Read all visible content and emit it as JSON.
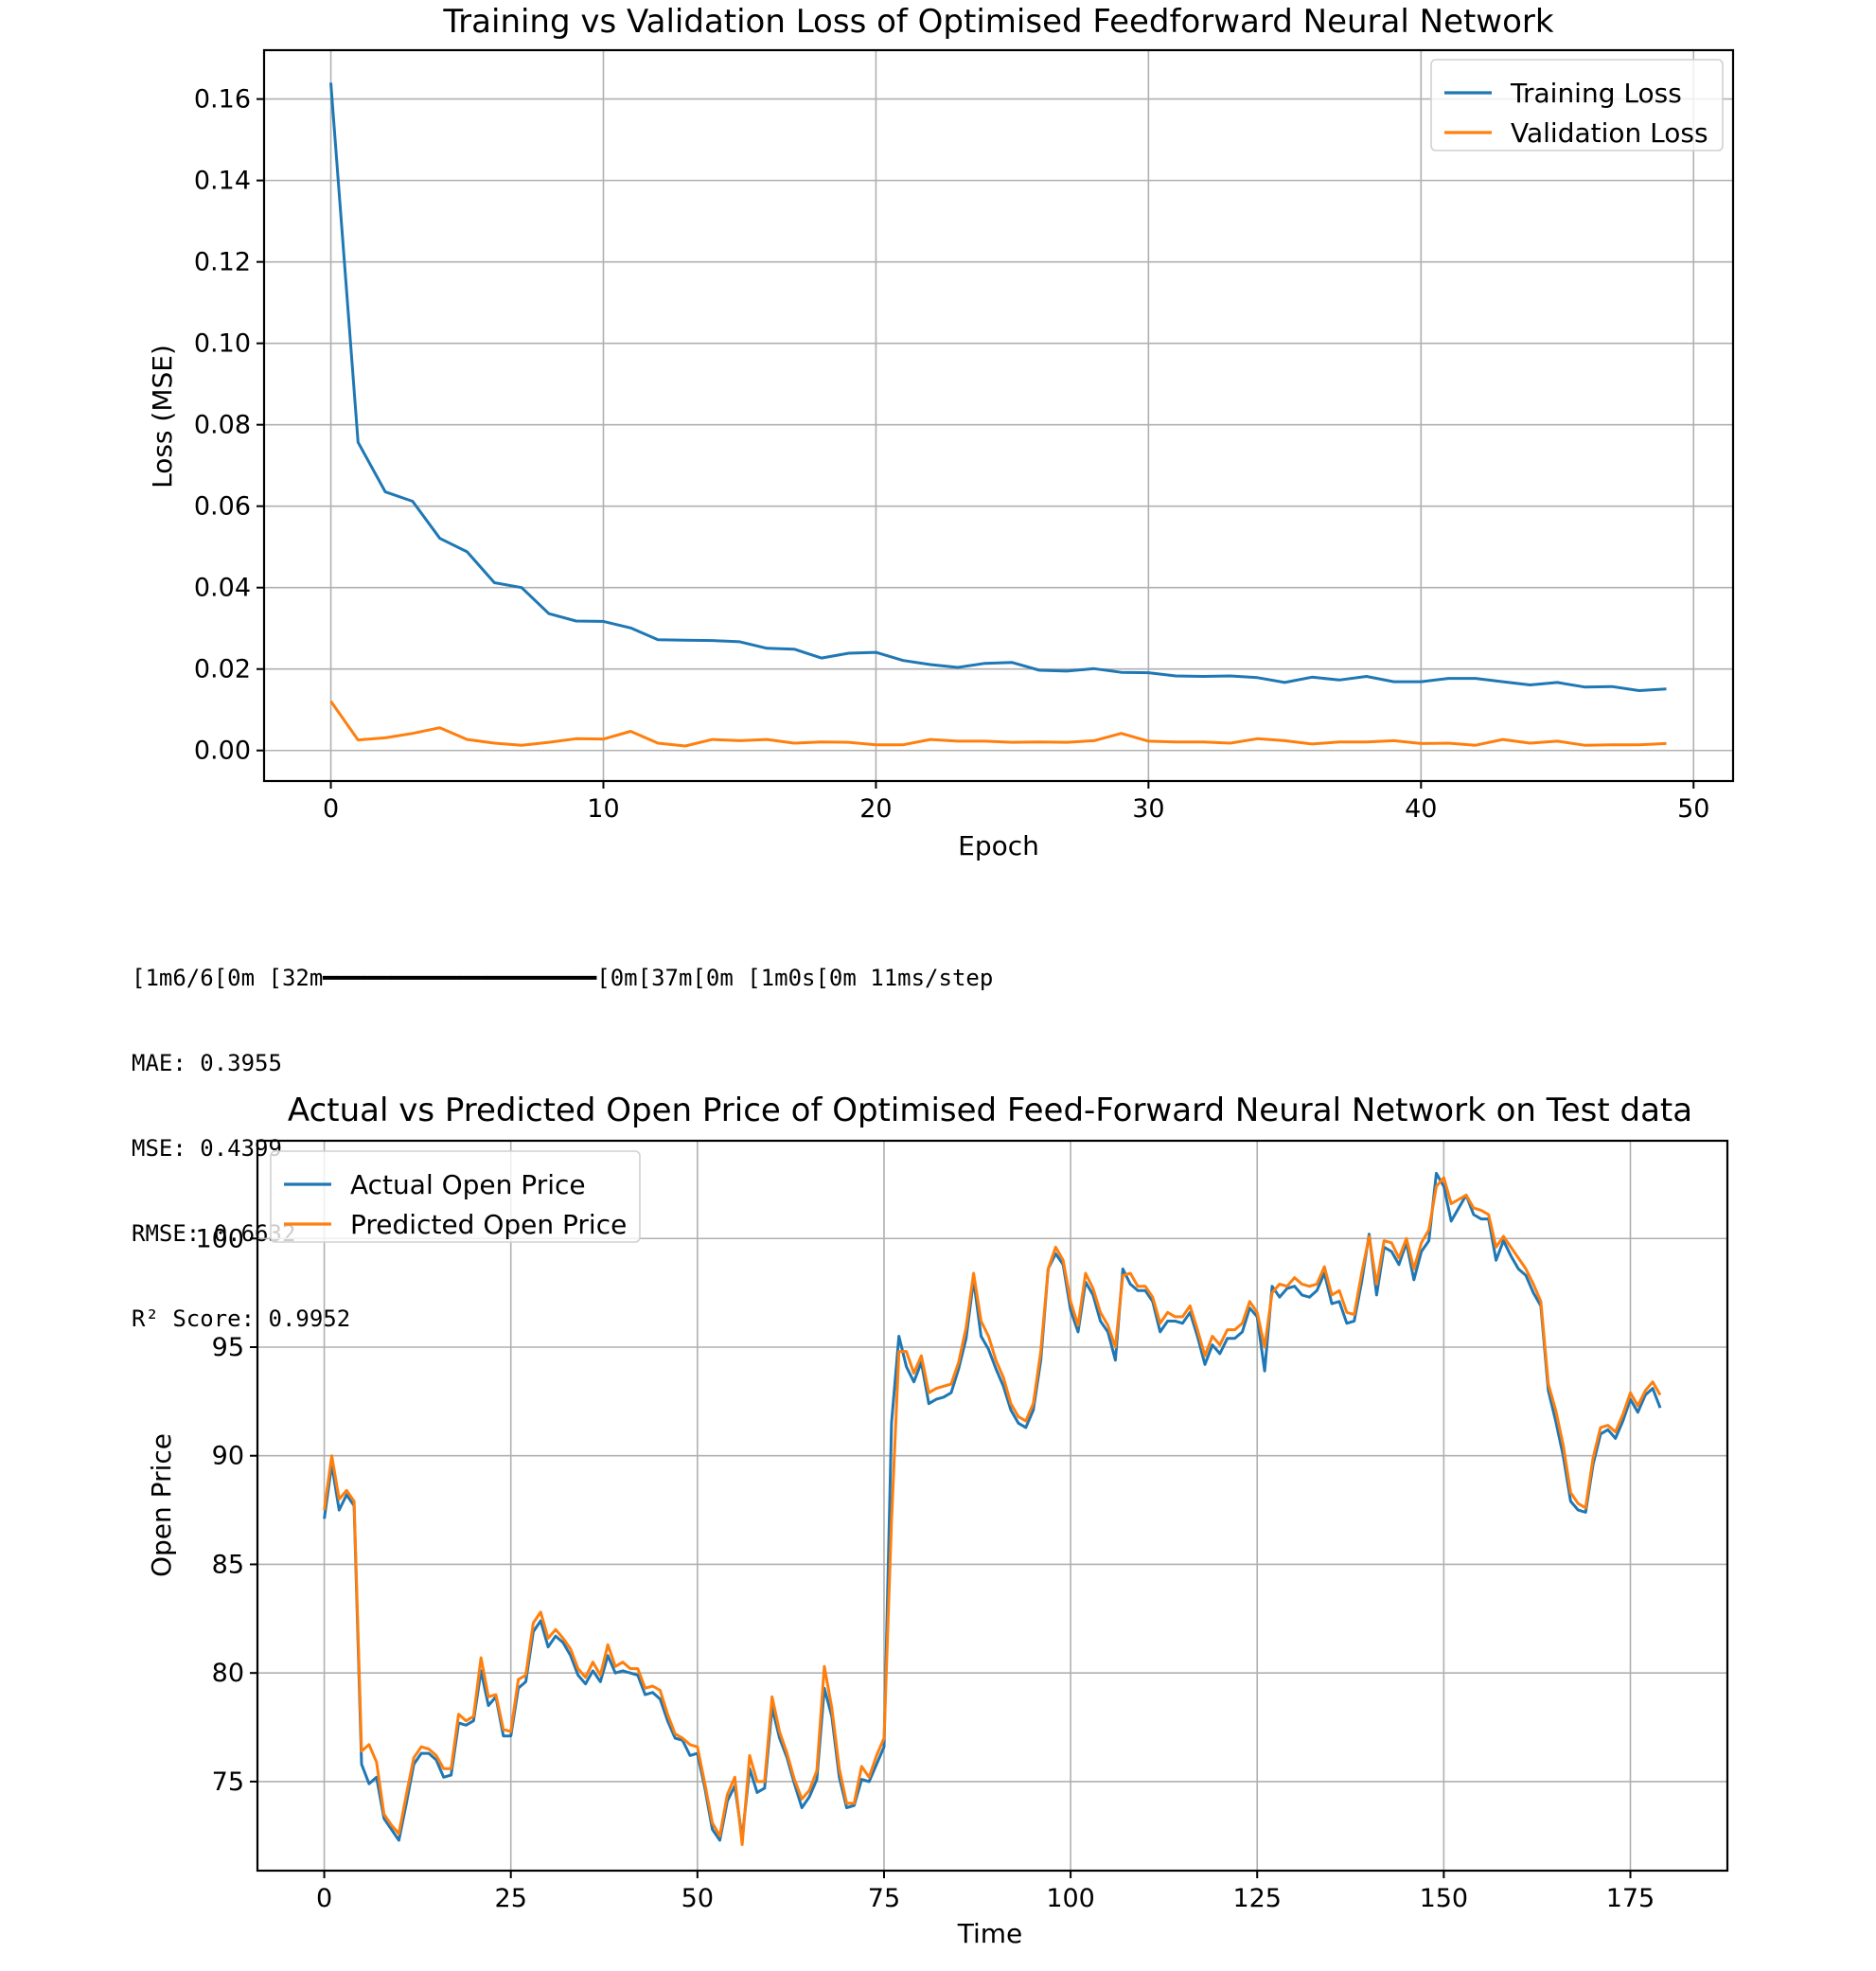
{
  "colors": {
    "training": "#1f77b4",
    "validation": "#ff7f0e",
    "actual": "#1f77b4",
    "predicted": "#ff7f0e"
  },
  "console": {
    "progress": "\u001b[1m6/6\u001b[0m \u001b[32m━━━━━━━━━━━━━━━━━━━━\u001b[0m\u001b[37m\u001b[0m \u001b[1m0s\u001b[0m 11ms/step",
    "mae": "MAE: 0.3955",
    "mse": "MSE: 0.4399",
    "rmse": "RMSE: 0.6632",
    "r2": "R² Score: 0.9952"
  },
  "chart_data": [
    {
      "type": "line",
      "title": "Training vs Validation Loss of Optimised Feedforward Neural Network",
      "xlabel": "Epoch",
      "ylabel": "Loss (MSE)",
      "xlim": [
        -2.45,
        51.45
      ],
      "ylim": [
        -0.0075,
        0.172
      ],
      "xticks": [
        0,
        10,
        20,
        30,
        40,
        50
      ],
      "yticks": [
        0.0,
        0.02,
        0.04,
        0.06,
        0.08,
        0.1,
        0.12,
        0.14,
        0.16
      ],
      "ytick_labels": [
        "0.00",
        "0.02",
        "0.04",
        "0.06",
        "0.08",
        "0.10",
        "0.12",
        "0.14",
        "0.16"
      ],
      "grid": true,
      "legend": "top-right",
      "series": [
        {
          "name": "Training Loss",
          "color": "#1f77b4",
          "values": [
            0.164,
            0.0757,
            0.0635,
            0.0612,
            0.0521,
            0.0488,
            0.0412,
            0.04,
            0.0336,
            0.0318,
            0.0317,
            0.0301,
            0.0272,
            0.0271,
            0.027,
            0.0267,
            0.0251,
            0.0249,
            0.0227,
            0.0239,
            0.0241,
            0.0221,
            0.0211,
            0.0204,
            0.0214,
            0.0216,
            0.0197,
            0.0195,
            0.0201,
            0.0192,
            0.0191,
            0.0183,
            0.0182,
            0.0183,
            0.0179,
            0.0167,
            0.018,
            0.0173,
            0.0182,
            0.0169,
            0.0169,
            0.0177,
            0.0177,
            0.0169,
            0.0161,
            0.0167,
            0.0156,
            0.0157,
            0.0147,
            0.0151
          ]
        },
        {
          "name": "Validation Loss",
          "color": "#ff7f0e",
          "values": [
            0.0121,
            0.0026,
            0.0031,
            0.0042,
            0.0056,
            0.0027,
            0.0018,
            0.0013,
            0.002,
            0.0029,
            0.0028,
            0.0047,
            0.0018,
            0.0011,
            0.0027,
            0.0024,
            0.0027,
            0.0018,
            0.0021,
            0.002,
            0.0014,
            0.0014,
            0.0027,
            0.0023,
            0.0023,
            0.002,
            0.0021,
            0.002,
            0.0024,
            0.0042,
            0.0023,
            0.0021,
            0.0021,
            0.0018,
            0.0029,
            0.0024,
            0.0016,
            0.0021,
            0.0021,
            0.0024,
            0.0017,
            0.0018,
            0.0013,
            0.0027,
            0.0018,
            0.0023,
            0.0013,
            0.0014,
            0.0014,
            0.0017
          ]
        }
      ]
    },
    {
      "type": "line",
      "title": "Actual vs Predicted Open Price of Optimised Feed-Forward Neural Network on Test data",
      "xlabel": "Time",
      "ylabel": "Open Price",
      "xlim": [
        -8.95,
        188.0
      ],
      "ylim": [
        70.9,
        104.5
      ],
      "xticks": [
        0,
        25,
        50,
        75,
        100,
        125,
        150,
        175
      ],
      "yticks": [
        75,
        80,
        85,
        90,
        95,
        100
      ],
      "ytick_labels": [
        "75",
        "80",
        "85",
        "90",
        "95",
        "100"
      ],
      "grid": true,
      "legend": "top-left",
      "x_start": 0,
      "series": [
        {
          "name": "Actual Open Price",
          "color": "#1f77b4",
          "values": [
            87.1,
            89.6,
            87.5,
            88.2,
            87.7,
            75.8,
            74.9,
            75.2,
            73.3,
            72.8,
            72.3,
            74.0,
            75.8,
            76.3,
            76.3,
            76.0,
            75.2,
            75.3,
            77.7,
            77.6,
            77.8,
            80.1,
            78.5,
            78.9,
            77.1,
            77.1,
            79.3,
            79.6,
            81.9,
            82.4,
            81.2,
            81.7,
            81.4,
            80.8,
            79.9,
            79.5,
            80.1,
            79.6,
            80.8,
            80.0,
            80.1,
            80.0,
            79.9,
            79.0,
            79.1,
            78.8,
            77.8,
            77.0,
            76.9,
            76.2,
            76.3,
            74.7,
            72.8,
            72.3,
            74.1,
            74.8,
            72.4,
            75.6,
            74.5,
            74.7,
            78.4,
            77.0,
            76.1,
            74.9,
            73.8,
            74.3,
            75.1,
            79.3,
            78.0,
            75.2,
            73.8,
            73.9,
            75.1,
            75.0,
            75.8,
            76.6,
            91.5,
            95.5,
            94.1,
            93.4,
            94.3,
            92.4,
            92.6,
            92.7,
            92.9,
            94.0,
            95.4,
            98.1,
            95.5,
            94.9,
            94.0,
            93.2,
            92.1,
            91.5,
            91.3,
            92.1,
            94.4,
            98.6,
            99.3,
            98.8,
            96.7,
            95.7,
            98.0,
            97.4,
            96.2,
            95.7,
            94.4,
            98.6,
            97.9,
            97.6,
            97.6,
            97.1,
            95.7,
            96.2,
            96.2,
            96.1,
            96.6,
            95.5,
            94.2,
            95.1,
            94.7,
            95.4,
            95.4,
            95.7,
            96.8,
            96.4,
            93.9,
            97.8,
            97.3,
            97.7,
            97.8,
            97.4,
            97.3,
            97.6,
            98.4,
            97.0,
            97.1,
            96.1,
            96.2,
            98.0,
            100.2,
            97.4,
            99.6,
            99.4,
            98.8,
            99.8,
            98.1,
            99.4,
            99.9,
            103.0,
            102.4,
            100.8,
            101.4,
            102.0,
            101.1,
            100.9,
            100.9,
            99.0,
            99.9,
            99.2,
            98.6,
            98.3,
            97.5,
            96.9,
            93.0,
            91.6,
            90.0,
            87.9,
            87.5,
            87.4,
            89.6,
            91.0,
            91.2,
            90.8,
            91.6,
            92.6,
            92.0,
            92.8,
            93.1,
            92.2
          ]
        },
        {
          "name": "Predicted Open Price",
          "color": "#ff7f0e",
          "values": [
            87.5,
            90.0,
            88.0,
            88.4,
            87.9,
            76.4,
            76.7,
            75.9,
            73.5,
            73.0,
            72.6,
            74.4,
            76.1,
            76.6,
            76.5,
            76.2,
            75.6,
            75.6,
            78.1,
            77.8,
            78.0,
            80.7,
            78.9,
            79.0,
            77.4,
            77.3,
            79.7,
            79.9,
            82.3,
            82.8,
            81.6,
            82.0,
            81.6,
            81.1,
            80.2,
            79.8,
            80.5,
            79.9,
            81.3,
            80.3,
            80.5,
            80.2,
            80.2,
            79.3,
            79.4,
            79.2,
            78.1,
            77.2,
            77.0,
            76.7,
            76.6,
            74.9,
            73.1,
            72.5,
            74.4,
            75.2,
            72.1,
            76.2,
            75.0,
            75.0,
            78.9,
            77.3,
            76.3,
            75.1,
            74.2,
            74.6,
            75.5,
            80.3,
            78.4,
            75.6,
            74.0,
            74.0,
            75.7,
            75.2,
            76.2,
            77.0,
            87.0,
            94.8,
            94.8,
            93.8,
            94.6,
            92.9,
            93.1,
            93.2,
            93.3,
            94.3,
            95.9,
            98.4,
            96.2,
            95.5,
            94.4,
            93.6,
            92.4,
            91.8,
            91.6,
            92.4,
            94.8,
            98.6,
            99.6,
            99.0,
            97.1,
            96.0,
            98.4,
            97.7,
            96.6,
            96.0,
            95.0,
            98.3,
            98.4,
            97.8,
            97.8,
            97.3,
            96.1,
            96.6,
            96.4,
            96.4,
            96.9,
            95.8,
            94.6,
            95.5,
            95.1,
            95.8,
            95.8,
            96.1,
            97.1,
            96.6,
            95.0,
            97.5,
            97.9,
            97.8,
            98.2,
            97.9,
            97.8,
            97.9,
            98.7,
            97.4,
            97.6,
            96.6,
            96.5,
            98.4,
            100.1,
            97.9,
            99.9,
            99.8,
            99.1,
            100.0,
            98.6,
            99.8,
            100.4,
            102.4,
            102.8,
            101.6,
            101.8,
            102.0,
            101.4,
            101.3,
            101.1,
            99.6,
            100.1,
            99.6,
            99.1,
            98.6,
            97.9,
            97.1,
            93.3,
            92.1,
            90.5,
            88.3,
            87.8,
            87.6,
            89.9,
            91.3,
            91.4,
            91.1,
            91.9,
            92.9,
            92.3,
            93.0,
            93.4,
            92.8
          ]
        }
      ]
    }
  ]
}
